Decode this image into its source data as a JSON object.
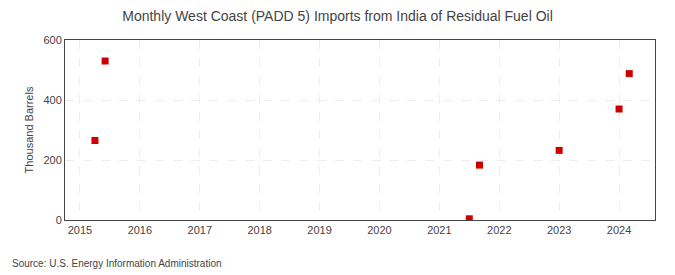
{
  "chart_data": {
    "type": "scatter",
    "title": "Monthly West Coast (PADD 5) Imports from India of Residual Fuel Oil",
    "ylabel": "Thousand Barrels",
    "annotations": [
      "Source: U.S. Energy Information Administration"
    ],
    "x": [
      2015.25,
      2015.42,
      2021.5,
      2021.67,
      2023.0,
      2024.0,
      2024.17
    ],
    "values": [
      265,
      530,
      4,
      183,
      232,
      370,
      488
    ],
    "color": "#cc0000",
    "marker": "square",
    "xlim": [
      2014.75,
      2024.6
    ],
    "ylim": [
      0,
      600
    ],
    "xticks": [
      2015,
      2016,
      2017,
      2018,
      2019,
      2020,
      2021,
      2022,
      2023,
      2024
    ],
    "yticks": [
      0,
      200,
      400,
      600
    ],
    "grid": true
  }
}
